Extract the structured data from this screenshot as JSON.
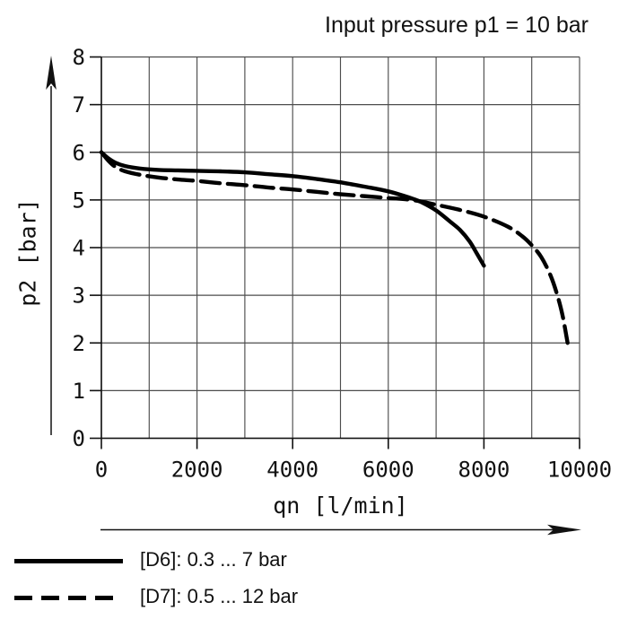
{
  "chart": {
    "title": "Input pressure p1 = 10 bar",
    "xlabel": "qn [l/min]",
    "ylabel": "p2 [bar]"
  },
  "legend": {
    "items": [
      {
        "style": "solid",
        "label": "[D6]: 0.3 ... 7 bar"
      },
      {
        "style": "dashed",
        "label": "[D7]: 0.5 ... 12 bar"
      }
    ]
  },
  "chart_data": {
    "type": "line",
    "title": "Input pressure p1 = 10 bar",
    "xlabel": "qn [l/min]",
    "ylabel": "p2 [bar]",
    "xlim": [
      0,
      10000
    ],
    "ylim": [
      0,
      8
    ],
    "x_ticks": [
      0,
      2000,
      4000,
      6000,
      8000,
      10000
    ],
    "x_grid_step": 1000,
    "y_ticks": [
      0,
      1,
      2,
      3,
      4,
      5,
      6,
      7,
      8
    ],
    "grid": true,
    "legend_position": "bottom-left",
    "colors": {
      "curve": "#000000",
      "grid": "#4d4d4d",
      "axis": "#111111"
    },
    "series": [
      {
        "name": "[D6]: 0.3 ... 7 bar",
        "line_style": "solid",
        "points": [
          [
            0,
            6.0
          ],
          [
            150,
            5.87
          ],
          [
            300,
            5.78
          ],
          [
            500,
            5.71
          ],
          [
            800,
            5.66
          ],
          [
            1200,
            5.63
          ],
          [
            1600,
            5.62
          ],
          [
            2000,
            5.61
          ],
          [
            2500,
            5.6
          ],
          [
            3000,
            5.58
          ],
          [
            3500,
            5.54
          ],
          [
            4000,
            5.5
          ],
          [
            4500,
            5.44
          ],
          [
            5000,
            5.37
          ],
          [
            5500,
            5.28
          ],
          [
            6000,
            5.18
          ],
          [
            6500,
            5.03
          ],
          [
            6700,
            4.95
          ],
          [
            7000,
            4.78
          ],
          [
            7300,
            4.54
          ],
          [
            7500,
            4.37
          ],
          [
            7700,
            4.13
          ],
          [
            7850,
            3.88
          ],
          [
            8000,
            3.62
          ]
        ]
      },
      {
        "name": "[D7]: 0.5 ... 12 bar",
        "line_style": "dashed",
        "points": [
          [
            0,
            6.0
          ],
          [
            150,
            5.82
          ],
          [
            300,
            5.69
          ],
          [
            500,
            5.6
          ],
          [
            800,
            5.53
          ],
          [
            1200,
            5.47
          ],
          [
            1600,
            5.43
          ],
          [
            2000,
            5.4
          ],
          [
            2500,
            5.35
          ],
          [
            3000,
            5.31
          ],
          [
            3500,
            5.26
          ],
          [
            4000,
            5.22
          ],
          [
            4500,
            5.17
          ],
          [
            5000,
            5.12
          ],
          [
            5500,
            5.08
          ],
          [
            6000,
            5.04
          ],
          [
            6500,
            5.0
          ],
          [
            7000,
            4.9
          ],
          [
            7500,
            4.79
          ],
          [
            8000,
            4.65
          ],
          [
            8500,
            4.44
          ],
          [
            8800,
            4.24
          ],
          [
            9000,
            4.05
          ],
          [
            9200,
            3.8
          ],
          [
            9400,
            3.4
          ],
          [
            9550,
            2.95
          ],
          [
            9650,
            2.55
          ],
          [
            9750,
            2.0
          ]
        ]
      }
    ]
  }
}
